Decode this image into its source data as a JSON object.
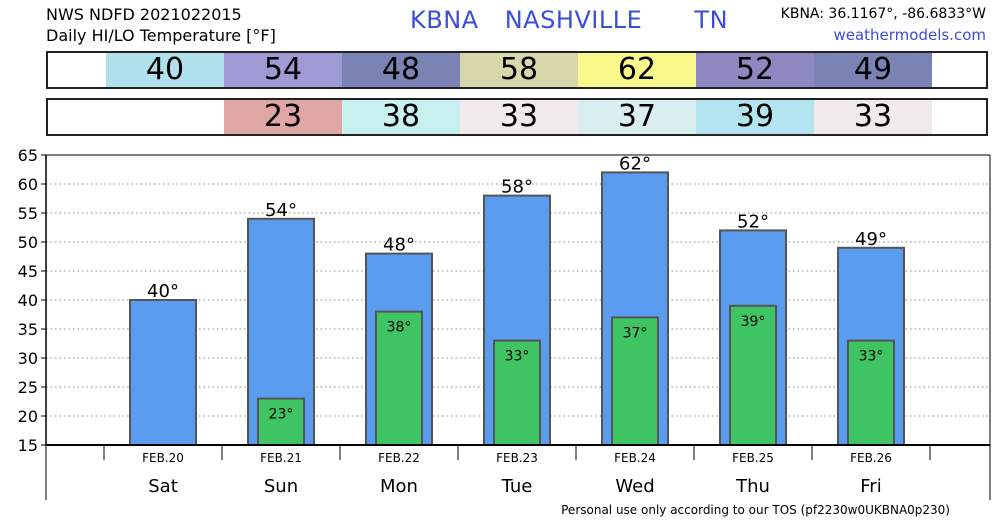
{
  "header": {
    "line1": "NWS NDFD 2021022015",
    "line2": "Daily HI/LO Temperature [°F]",
    "station": "KBNA",
    "city": "NASHVILLE",
    "state": "TN",
    "coords": "KBNA: 36.1167°, -86.6833°W",
    "site": "weathermodels.com"
  },
  "highs_strip": [
    {
      "text": "40",
      "color": "#b0e0ec"
    },
    {
      "text": "54",
      "color": "#9e9ad4"
    },
    {
      "text": "48",
      "color": "#7b83b5"
    },
    {
      "text": "58",
      "color": "#d8d7ac"
    },
    {
      "text": "62",
      "color": "#f9f98b"
    },
    {
      "text": "52",
      "color": "#8e88c0"
    },
    {
      "text": "49",
      "color": "#7b83b5"
    }
  ],
  "lows_strip": [
    null,
    {
      "text": "23",
      "color": "#e0a6a6"
    },
    {
      "text": "38",
      "color": "#c9f0f0"
    },
    {
      "text": "33",
      "color": "#f0ebea"
    },
    {
      "text": "37",
      "color": "#d8eef0"
    },
    {
      "text": "39",
      "color": "#b4e4ef"
    },
    {
      "text": "33",
      "color": "#f0ebea"
    }
  ],
  "footer": "Personal use only according to our TOS (pf2230w0UKBNA0p230)",
  "chart_data": {
    "type": "bar",
    "categories": [
      "Sat",
      "Sun",
      "Mon",
      "Tue",
      "Wed",
      "Thu",
      "Fri"
    ],
    "dates": [
      "FEB.20",
      "FEB.21",
      "FEB.22",
      "FEB.23",
      "FEB.24",
      "FEB.25",
      "FEB.26"
    ],
    "series": [
      {
        "values": [
          40,
          54,
          48,
          58,
          62,
          52,
          49
        ],
        "labels": [
          "40°",
          "54°",
          "48°",
          "58°",
          "62°",
          "52°",
          "49°"
        ],
        "color": "#5a9cf0"
      },
      {
        "values": [
          null,
          23,
          38,
          33,
          37,
          39,
          33
        ],
        "labels": [
          "",
          "23°",
          "38°",
          "33°",
          "37°",
          "39°",
          "33°"
        ],
        "color": "#3ec462"
      }
    ],
    "ylim": [
      15,
      65
    ],
    "yticks": [
      "15",
      "20",
      "25",
      "30",
      "35",
      "40",
      "45",
      "50",
      "55",
      "60",
      "65"
    ],
    "grid": true
  }
}
